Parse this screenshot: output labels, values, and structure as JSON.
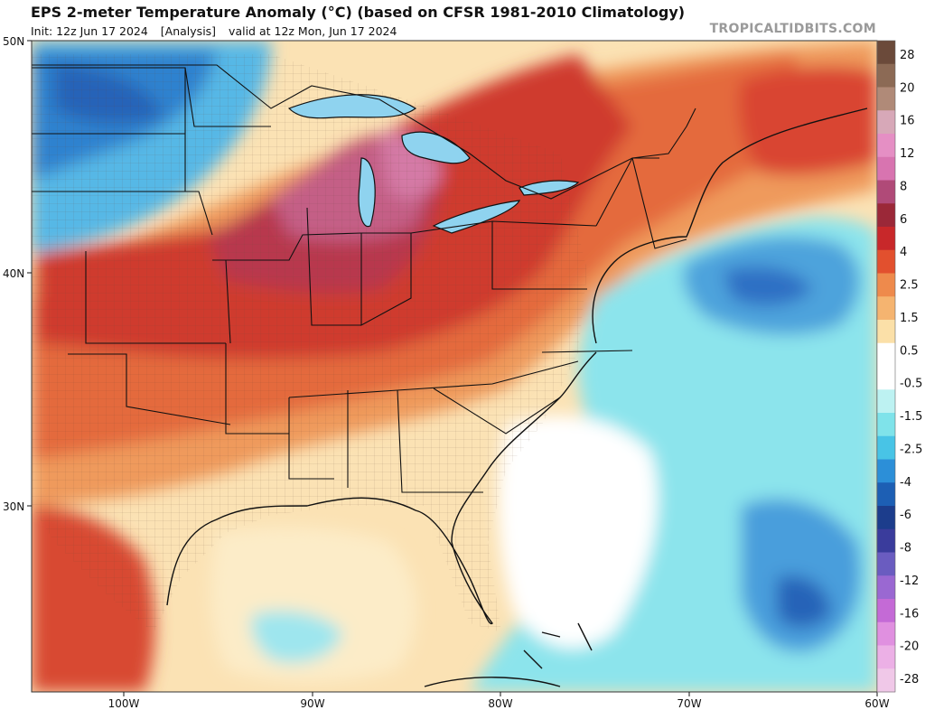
{
  "header": {
    "title": "EPS 2-meter Temperature Anomaly (°C) (based on CFSR 1981-2010 Climatology)",
    "init": "Init: 12z Jun 17 2024",
    "run_type": "[Analysis]",
    "valid": "valid at 12z Mon, Jun 17 2024",
    "brand": "TROPICALTIDBITS.COM"
  },
  "map": {
    "lat_labels": [
      "50N",
      "40N",
      "30N"
    ],
    "lon_labels": [
      "100W",
      "90W",
      "80W",
      "70W",
      "60W"
    ]
  },
  "colorbar": {
    "labels": [
      "28",
      "20",
      "16",
      "12",
      "8",
      "6",
      "4",
      "2.5",
      "1.5",
      "0.5",
      "-0.5",
      "-1.5",
      "-2.5",
      "-4",
      "-6",
      "-8",
      "-12",
      "-16",
      "-20",
      "-28"
    ],
    "colors": [
      "#6b4a3a",
      "#8c6a55",
      "#b08a78",
      "#d7a8b8",
      "#e58fc4",
      "#d874b0",
      "#b04a78",
      "#9b2838",
      "#c8282a",
      "#e2502e",
      "#ee8a4c",
      "#f5b470",
      "#fbe0a8",
      "#ffffff",
      "#ffffff",
      "#bdf2f2",
      "#7fe3ea",
      "#48c4e6",
      "#2c8fd8",
      "#1d5fb4",
      "#1c3d8c",
      "#3a3c9c",
      "#6a5cc0",
      "#9a68d2",
      "#c46ad6",
      "#e090e0",
      "#ecb0e6",
      "#f0c8e8"
    ]
  }
}
